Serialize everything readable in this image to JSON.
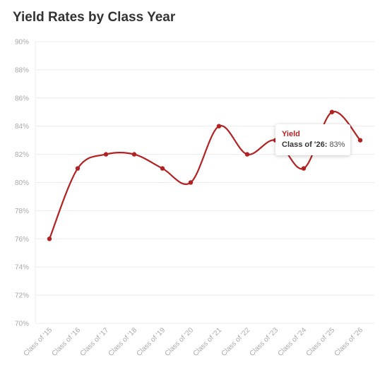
{
  "chart_data": {
    "type": "line",
    "title": "Yield Rates by Class Year",
    "categories": [
      "Class of '15",
      "Class of '16",
      "Class of '17",
      "Class of '18",
      "Class of '19",
      "Class of '20",
      "Class of '21",
      "Class of '22",
      "Class of '23",
      "Class of '24",
      "Class of '25",
      "Class of '26"
    ],
    "series": [
      {
        "name": "Yield",
        "values": [
          76,
          81,
          82,
          82,
          81,
          80,
          84,
          82,
          83,
          81,
          85,
          83
        ]
      }
    ],
    "ylim": [
      70,
      90
    ],
    "yticks": [
      70,
      72,
      74,
      76,
      78,
      80,
      82,
      84,
      86,
      88,
      90
    ],
    "ytick_suffix": "%",
    "grid": true,
    "line_color": "#b22222"
  },
  "tooltip": {
    "series": "Yield",
    "category": "Class of '26:",
    "value": "83%"
  }
}
